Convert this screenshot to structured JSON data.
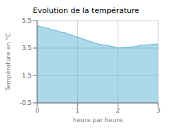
{
  "chart_data": {
    "type": "area",
    "title": "Evolution de la température",
    "xlabel": "heure par heure",
    "ylabel": "Température en °C",
    "x": [
      0,
      0.1,
      0.2,
      0.3,
      0.4,
      0.5,
      0.6,
      0.7,
      0.8,
      0.9,
      1.0,
      1.1,
      1.2,
      1.3,
      1.4,
      1.5,
      1.6,
      1.7,
      1.8,
      1.9,
      2.0,
      2.1,
      2.2,
      2.3,
      2.4,
      2.5,
      2.6,
      2.7,
      2.8,
      2.9,
      3.0
    ],
    "values": [
      5.1,
      5.05,
      5.0,
      4.9,
      4.82,
      4.75,
      4.65,
      4.6,
      4.5,
      4.4,
      4.3,
      4.2,
      4.1,
      4.0,
      3.9,
      3.8,
      3.75,
      3.7,
      3.65,
      3.6,
      3.5,
      3.52,
      3.55,
      3.57,
      3.6,
      3.65,
      3.7,
      3.72,
      3.75,
      3.78,
      3.8
    ],
    "color": "#5ab4d6",
    "xlim": [
      0,
      3
    ],
    "xticks": [
      0,
      1,
      2,
      3
    ],
    "ylim": [
      -0.5,
      5.5
    ],
    "yticks": [
      -0.5,
      1.5,
      3.5,
      5.5
    ],
    "grid": true
  }
}
